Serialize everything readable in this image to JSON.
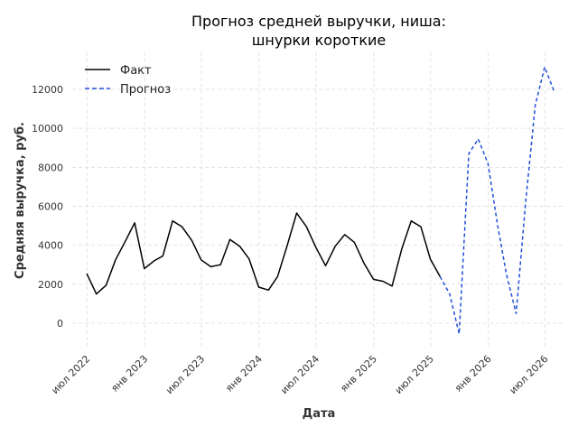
{
  "chart_data": {
    "type": "line",
    "title_line1": "Прогноз средней выручки, ниша:",
    "title_line2": "шнурки короткие",
    "xlabel": "Дата",
    "ylabel": "Средняя выручка, руб.",
    "x_range": [
      "2022-05-15",
      "2026-09-01"
    ],
    "ylim": [
      -1300,
      13900
    ],
    "grid": true,
    "legend_position": "top-left",
    "x_ticks": [
      {
        "date": "2022-07-01",
        "label": "июл 2022"
      },
      {
        "date": "2023-01-01",
        "label": "янв 2023"
      },
      {
        "date": "2023-07-01",
        "label": "июл 2023"
      },
      {
        "date": "2024-01-01",
        "label": "янв 2024"
      },
      {
        "date": "2024-07-01",
        "label": "июл 2024"
      },
      {
        "date": "2025-01-01",
        "label": "янв 2025"
      },
      {
        "date": "2025-07-01",
        "label": "июл 2025"
      },
      {
        "date": "2026-01-01",
        "label": "янв 2026"
      },
      {
        "date": "2026-07-01",
        "label": "июл 2026"
      }
    ],
    "y_ticks": [
      {
        "value": 0,
        "label": "0"
      },
      {
        "value": 2000,
        "label": "2000"
      },
      {
        "value": 4000,
        "label": "4000"
      },
      {
        "value": 6000,
        "label": "6000"
      },
      {
        "value": 8000,
        "label": "8000"
      },
      {
        "value": 10000,
        "label": "10000"
      },
      {
        "value": 12000,
        "label": "12000"
      }
    ],
    "series": [
      {
        "name": "Факт",
        "color": "#000000",
        "style": "solid",
        "points": [
          {
            "x": "2022-06-30",
            "y": 2550
          },
          {
            "x": "2022-07-31",
            "y": 1500
          },
          {
            "x": "2022-08-31",
            "y": 1950
          },
          {
            "x": "2022-09-30",
            "y": 3250
          },
          {
            "x": "2022-10-31",
            "y": 4200
          },
          {
            "x": "2022-11-30",
            "y": 5150
          },
          {
            "x": "2022-12-31",
            "y": 2800
          },
          {
            "x": "2023-01-31",
            "y": 3200
          },
          {
            "x": "2023-02-28",
            "y": 3450
          },
          {
            "x": "2023-03-31",
            "y": 5250
          },
          {
            "x": "2023-04-30",
            "y": 4950
          },
          {
            "x": "2023-05-31",
            "y": 4250
          },
          {
            "x": "2023-06-30",
            "y": 3250
          },
          {
            "x": "2023-07-31",
            "y": 2900
          },
          {
            "x": "2023-08-31",
            "y": 3000
          },
          {
            "x": "2023-09-30",
            "y": 4300
          },
          {
            "x": "2023-10-31",
            "y": 3950
          },
          {
            "x": "2023-11-30",
            "y": 3300
          },
          {
            "x": "2023-12-31",
            "y": 1850
          },
          {
            "x": "2024-01-31",
            "y": 1700
          },
          {
            "x": "2024-02-29",
            "y": 2400
          },
          {
            "x": "2024-03-31",
            "y": 4000
          },
          {
            "x": "2024-04-30",
            "y": 5650
          },
          {
            "x": "2024-05-31",
            "y": 4950
          },
          {
            "x": "2024-06-30",
            "y": 3900
          },
          {
            "x": "2024-07-31",
            "y": 2950
          },
          {
            "x": "2024-08-31",
            "y": 3950
          },
          {
            "x": "2024-09-30",
            "y": 4550
          },
          {
            "x": "2024-10-31",
            "y": 4150
          },
          {
            "x": "2024-11-30",
            "y": 3100
          },
          {
            "x": "2024-12-31",
            "y": 2250
          },
          {
            "x": "2025-01-31",
            "y": 2150
          },
          {
            "x": "2025-02-28",
            "y": 1900
          },
          {
            "x": "2025-03-31",
            "y": 3800
          },
          {
            "x": "2025-04-30",
            "y": 5250
          },
          {
            "x": "2025-05-31",
            "y": 4950
          },
          {
            "x": "2025-06-30",
            "y": 3300
          },
          {
            "x": "2025-07-31",
            "y": 2400
          }
        ]
      },
      {
        "name": "Прогноз",
        "color": "#1f4fd6",
        "style": "dashed",
        "points": [
          {
            "x": "2025-07-31",
            "y": 2400
          },
          {
            "x": "2025-08-31",
            "y": 1500
          },
          {
            "x": "2025-09-30",
            "y": -550
          },
          {
            "x": "2025-10-31",
            "y": 8700
          },
          {
            "x": "2025-11-30",
            "y": 9450
          },
          {
            "x": "2025-12-31",
            "y": 8200
          },
          {
            "x": "2026-01-31",
            "y": 5000
          },
          {
            "x": "2026-02-28",
            "y": 2500
          },
          {
            "x": "2026-03-31",
            "y": 500
          },
          {
            "x": "2026-04-30",
            "y": 6200
          },
          {
            "x": "2026-05-31",
            "y": 11200
          },
          {
            "x": "2026-06-30",
            "y": 13150
          },
          {
            "x": "2026-07-31",
            "y": 11850
          }
        ]
      }
    ]
  }
}
